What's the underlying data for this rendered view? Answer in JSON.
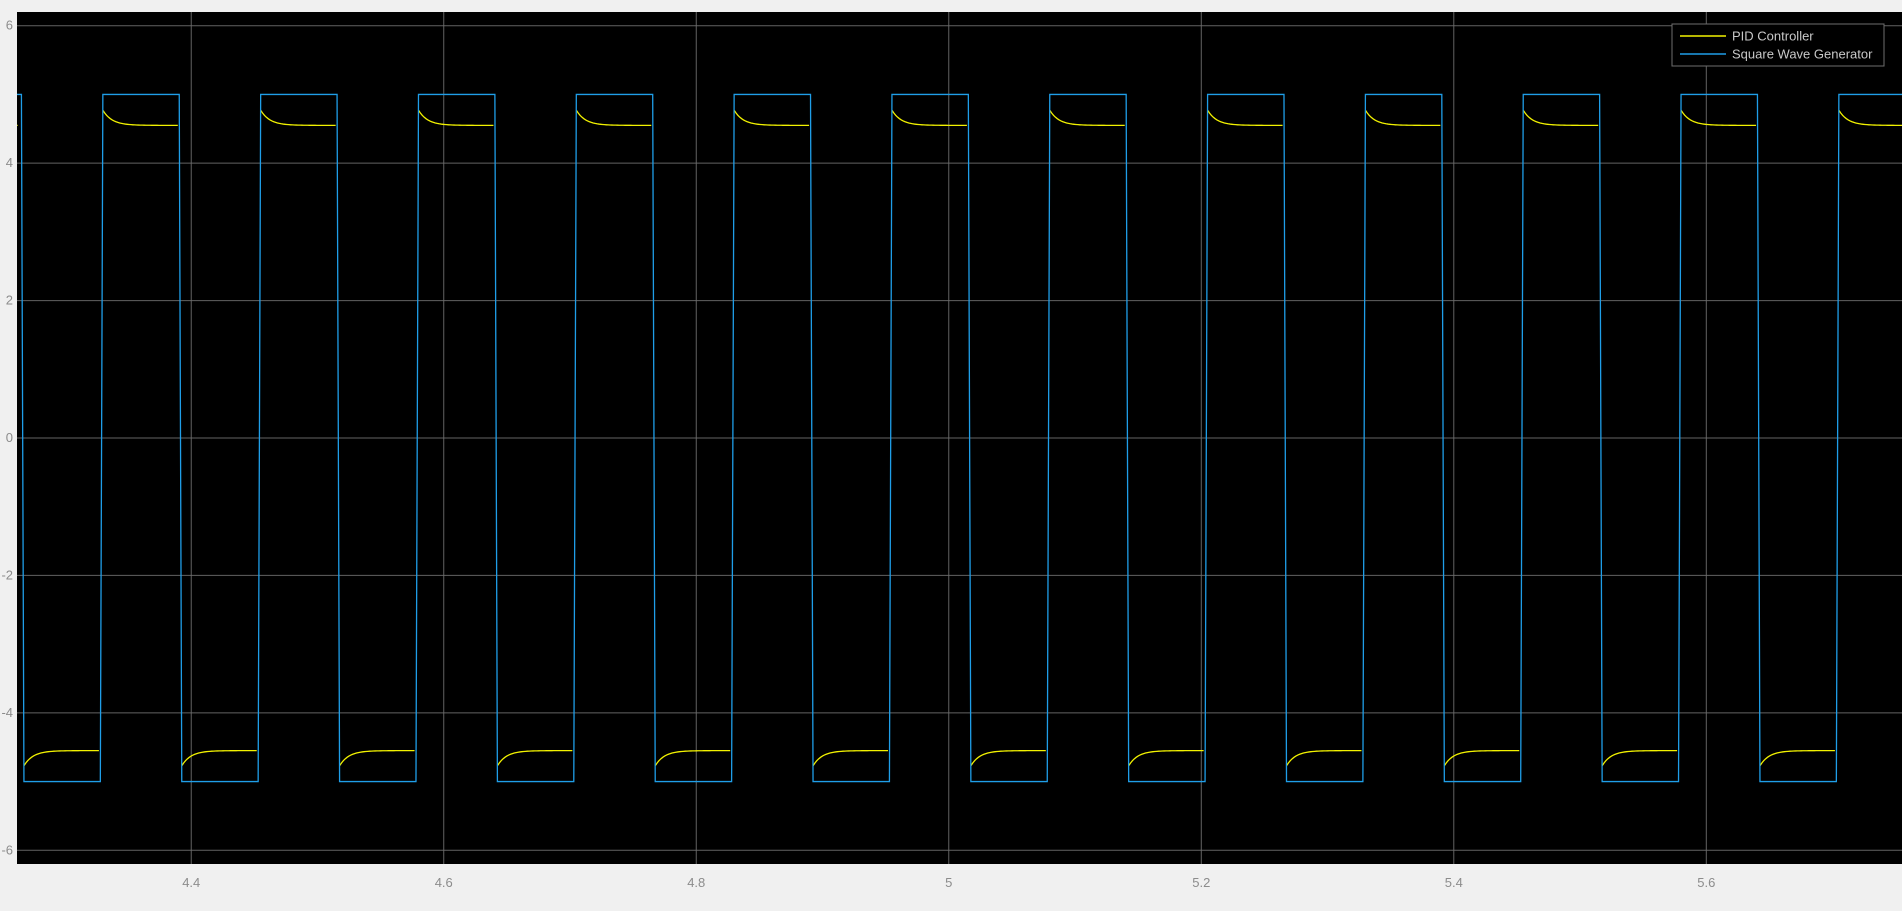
{
  "chart_data": {
    "type": "line",
    "title": "",
    "xlabel": "",
    "ylabel": "",
    "xlim": [
      4.262,
      5.755
    ],
    "ylim": [
      -6.2,
      6.2
    ],
    "x_ticks": [
      4.4,
      4.6,
      4.8,
      5,
      5.2,
      5.4,
      5.6
    ],
    "x_tick_labels": [
      "4.4",
      "4.6",
      "4.8",
      "5",
      "5.2",
      "5.4",
      "5.6"
    ],
    "y_ticks": [
      -6,
      -4,
      -2,
      0,
      2,
      4,
      6
    ],
    "y_tick_labels": [
      "-6",
      "-4",
      "-2",
      "0",
      "2",
      "4",
      "6"
    ],
    "grid": true,
    "background_color": "#000000",
    "grid_color": "#6e6e6e",
    "tick_label_color": "#8c8c8c",
    "legend_placement": "top-right",
    "legend": {
      "entries": [
        {
          "label": "PID Controller",
          "color": "#f2f200"
        },
        {
          "label": "Square Wave Generator",
          "color": "#1f9ee8"
        }
      ]
    },
    "series": [
      {
        "name": "Square Wave Generator",
        "color": "#1f9ee8",
        "type": "square_wave",
        "amplitude": 5,
        "high_level": 5,
        "low_level": -5,
        "period": 0.125,
        "first_falling_edge": 4.2655,
        "low_duration": 0.0625,
        "edge_width": 0.002
      },
      {
        "name": "PID Controller",
        "color": "#f2f200",
        "type": "pid_response",
        "steady_state_high": 4.55,
        "steady_state_low": -4.55,
        "initial_high": 4.77,
        "initial_low": -4.77,
        "visible_fraction_of_half_period": 0.95,
        "settle_fraction": 0.35
      }
    ]
  }
}
